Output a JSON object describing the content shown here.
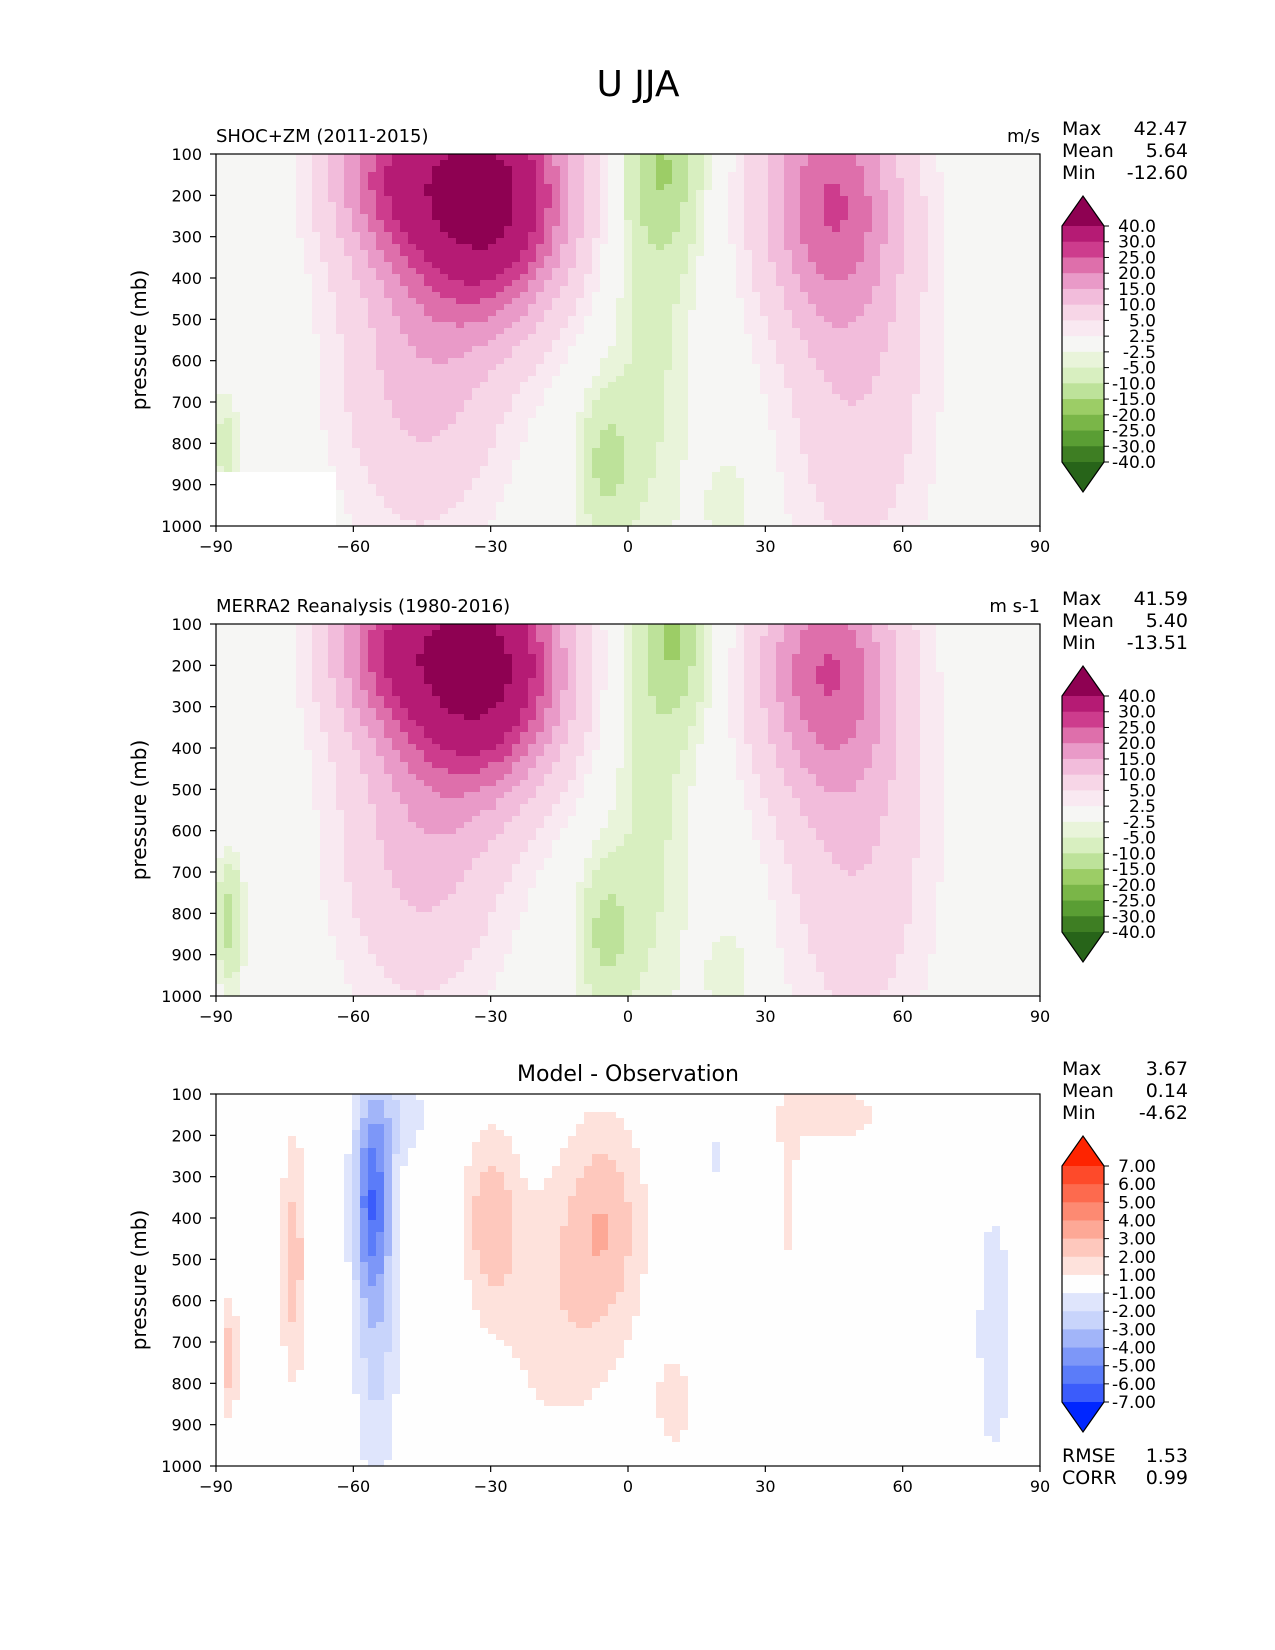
{
  "figure": {
    "title": "U JJA"
  },
  "colormaps": {
    "pinkgreen": [
      "#276419",
      "#3e7e23",
      "#5a9e34",
      "#7ab648",
      "#9ccd66",
      "#bde29a",
      "#d8efc0",
      "#e9f4da",
      "#f6f6f4",
      "#f9e9f1",
      "#f7d6e7",
      "#f2bcdb",
      "#e99ac8",
      "#de6fab",
      "#cd3c8d",
      "#b51b74",
      "#8e0152"
    ],
    "bluered": [
      "#0026ff",
      "#3b5cfb",
      "#5b7cf9",
      "#7d97f8",
      "#a2b5f9",
      "#c8d4fb",
      "#dfe5fc",
      "#fefefe",
      "#fee2dc",
      "#fec8bd",
      "#fda896",
      "#fd8a72",
      "#fd6a4e",
      "#fe4a2a",
      "#fe2400"
    ]
  },
  "chart_data": [
    {
      "type": "contour",
      "title": "",
      "left_title": "SHOC+ZM (2011-2015)",
      "right_title": "m/s",
      "xlabel": "",
      "ylabel": "pressure (mb)",
      "xlim": [
        -90,
        90
      ],
      "ylim": [
        1000,
        100
      ],
      "x_ticks": [
        -90,
        -60,
        -30,
        0,
        30,
        60,
        90
      ],
      "x_tick_labels": [
        "−90",
        "−60",
        "−30",
        "0",
        "30",
        "60",
        "90"
      ],
      "y_ticks": [
        100,
        200,
        300,
        400,
        500,
        600,
        700,
        800,
        900,
        1000
      ],
      "y_tick_labels": [
        "100",
        "200",
        "300",
        "400",
        "500",
        "600",
        "700",
        "800",
        "900",
        "1000"
      ],
      "stats": {
        "Max": "42.47",
        "Mean": "5.64",
        "Min": "-12.60"
      },
      "colormap": "pinkgreen",
      "colorbar_levels": [
        "40.0",
        "30.0",
        "25.0",
        "20.0",
        "15.0",
        "10.0",
        "5.0",
        "2.5",
        "-2.5",
        "-5.0",
        "-10.0",
        "-15.0",
        "-20.0",
        "-25.0",
        "-30.0",
        "-40.0"
      ],
      "features": [
        {
          "lat": -30,
          "p": 200,
          "amp": 42.5,
          "wlat": 17,
          "wp": 280
        },
        {
          "lat": -52,
          "p": 140,
          "amp": 20,
          "wlat": 14,
          "wp": 220
        },
        {
          "lat": -45,
          "p": 600,
          "amp": 12,
          "wlat": 18,
          "wp": 420
        },
        {
          "lat": 44,
          "p": 200,
          "amp": 22,
          "wlat": 15,
          "wp": 300
        },
        {
          "lat": 50,
          "p": 650,
          "amp": 9,
          "wlat": 16,
          "wp": 500
        },
        {
          "lat": 8,
          "p": 130,
          "amp": -12.6,
          "wlat": 8,
          "wp": 220
        },
        {
          "lat": -5,
          "p": 850,
          "amp": -11,
          "wlat": 6,
          "wp": 180
        },
        {
          "lat": 5,
          "p": 550,
          "amp": -6,
          "wlat": 9,
          "wp": 600
        },
        {
          "lat": 22,
          "p": 950,
          "amp": -5,
          "wlat": 5,
          "wp": 120
        },
        {
          "lat": -88,
          "p": 800,
          "amp": -7,
          "wlat": 3,
          "wp": 120
        }
      ],
      "mask": {
        "lat_max": -63,
        "p_min": 870
      }
    },
    {
      "type": "contour",
      "title": "",
      "left_title": "MERRA2 Reanalysis (1980-2016)",
      "right_title": "m s-1",
      "xlabel": "",
      "ylabel": "pressure (mb)",
      "xlim": [
        -90,
        90
      ],
      "ylim": [
        1000,
        100
      ],
      "x_ticks": [
        -90,
        -60,
        -30,
        0,
        30,
        60,
        90
      ],
      "x_tick_labels": [
        "−90",
        "−60",
        "−30",
        "0",
        "30",
        "60",
        "90"
      ],
      "y_ticks": [
        100,
        200,
        300,
        400,
        500,
        600,
        700,
        800,
        900,
        1000
      ],
      "y_tick_labels": [
        "100",
        "200",
        "300",
        "400",
        "500",
        "600",
        "700",
        "800",
        "900",
        "1000"
      ],
      "stats": {
        "Max": "41.59",
        "Mean": "5.40",
        "Min": "-13.51"
      },
      "colormap": "pinkgreen",
      "colorbar_levels": [
        "40.0",
        "30.0",
        "25.0",
        "20.0",
        "15.0",
        "10.0",
        "5.0",
        "2.5",
        "-2.5",
        "-5.0",
        "-10.0",
        "-15.0",
        "-20.0",
        "-25.0",
        "-30.0",
        "-40.0"
      ],
      "features": [
        {
          "lat": -31,
          "p": 200,
          "amp": 41.6,
          "wlat": 17,
          "wp": 280
        },
        {
          "lat": -52,
          "p": 140,
          "amp": 20,
          "wlat": 14,
          "wp": 220
        },
        {
          "lat": -45,
          "p": 600,
          "amp": 12,
          "wlat": 18,
          "wp": 420
        },
        {
          "lat": 43,
          "p": 200,
          "amp": 22,
          "wlat": 15,
          "wp": 300
        },
        {
          "lat": 50,
          "p": 650,
          "amp": 9,
          "wlat": 16,
          "wp": 500
        },
        {
          "lat": 10,
          "p": 120,
          "amp": -13.5,
          "wlat": 8,
          "wp": 220
        },
        {
          "lat": -5,
          "p": 850,
          "amp": -11,
          "wlat": 6,
          "wp": 180
        },
        {
          "lat": 5,
          "p": 550,
          "amp": -6,
          "wlat": 9,
          "wp": 600
        },
        {
          "lat": 22,
          "p": 950,
          "amp": -5,
          "wlat": 5,
          "wp": 120
        },
        {
          "lat": -87,
          "p": 820,
          "amp": -12,
          "wlat": 3,
          "wp": 150
        }
      ]
    },
    {
      "type": "contour",
      "title": "Model - Observation",
      "left_title": "",
      "right_title": "",
      "xlabel": "",
      "ylabel": "pressure (mb)",
      "xlim": [
        -90,
        90
      ],
      "ylim": [
        1000,
        100
      ],
      "x_ticks": [
        -90,
        -60,
        -30,
        0,
        30,
        60,
        90
      ],
      "x_tick_labels": [
        "−90",
        "−60",
        "−30",
        "0",
        "30",
        "60",
        "90"
      ],
      "y_ticks": [
        100,
        200,
        300,
        400,
        500,
        600,
        700,
        800,
        900,
        1000
      ],
      "y_tick_labels": [
        "100",
        "200",
        "300",
        "400",
        "500",
        "600",
        "700",
        "800",
        "900",
        "1000"
      ],
      "stats": {
        "Max": "3.67",
        "Mean": "0.14",
        "Min": "-4.62"
      },
      "extra_stats": {
        "RMSE": "1.53",
        "CORR": "0.99"
      },
      "colormap": "bluered",
      "colorbar_levels": [
        "7.00",
        "6.00",
        "5.00",
        "4.00",
        "3.00",
        "2.00",
        "1.00",
        "-1.00",
        "-2.00",
        "-3.00",
        "-4.00",
        "-5.00",
        "-6.00",
        "-7.00"
      ],
      "features": [
        {
          "lat": -56,
          "p": 340,
          "amp": -4.6,
          "wlat": 4,
          "wp": 230
        },
        {
          "lat": -55,
          "p": 650,
          "amp": -2.5,
          "wlat": 5,
          "wp": 420
        },
        {
          "lat": -50,
          "p": 150,
          "amp": -1.6,
          "wlat": 7,
          "wp": 120
        },
        {
          "lat": -73,
          "p": 500,
          "amp": 2.5,
          "wlat": 3,
          "wp": 320
        },
        {
          "lat": -87,
          "p": 740,
          "amp": 2.5,
          "wlat": 2,
          "wp": 160
        },
        {
          "lat": -30,
          "p": 400,
          "amp": 2.6,
          "wlat": 6,
          "wp": 220
        },
        {
          "lat": -5,
          "p": 400,
          "amp": 2.4,
          "wlat": 9,
          "wp": 260
        },
        {
          "lat": -15,
          "p": 620,
          "amp": 1.6,
          "wlat": 14,
          "wp": 340
        },
        {
          "lat": 10,
          "p": 850,
          "amp": 1.4,
          "wlat": 5,
          "wp": 150
        },
        {
          "lat": 45,
          "p": 150,
          "amp": 1.5,
          "wlat": 13,
          "wp": 80
        },
        {
          "lat": 35,
          "p": 350,
          "amp": 1.3,
          "wlat": 3,
          "wp": 250
        },
        {
          "lat": 19,
          "p": 250,
          "amp": -1.3,
          "wlat": 3,
          "wp": 80
        },
        {
          "lat": 80,
          "p": 680,
          "amp": -1.5,
          "wlat": 5,
          "wp": 420
        }
      ]
    }
  ]
}
